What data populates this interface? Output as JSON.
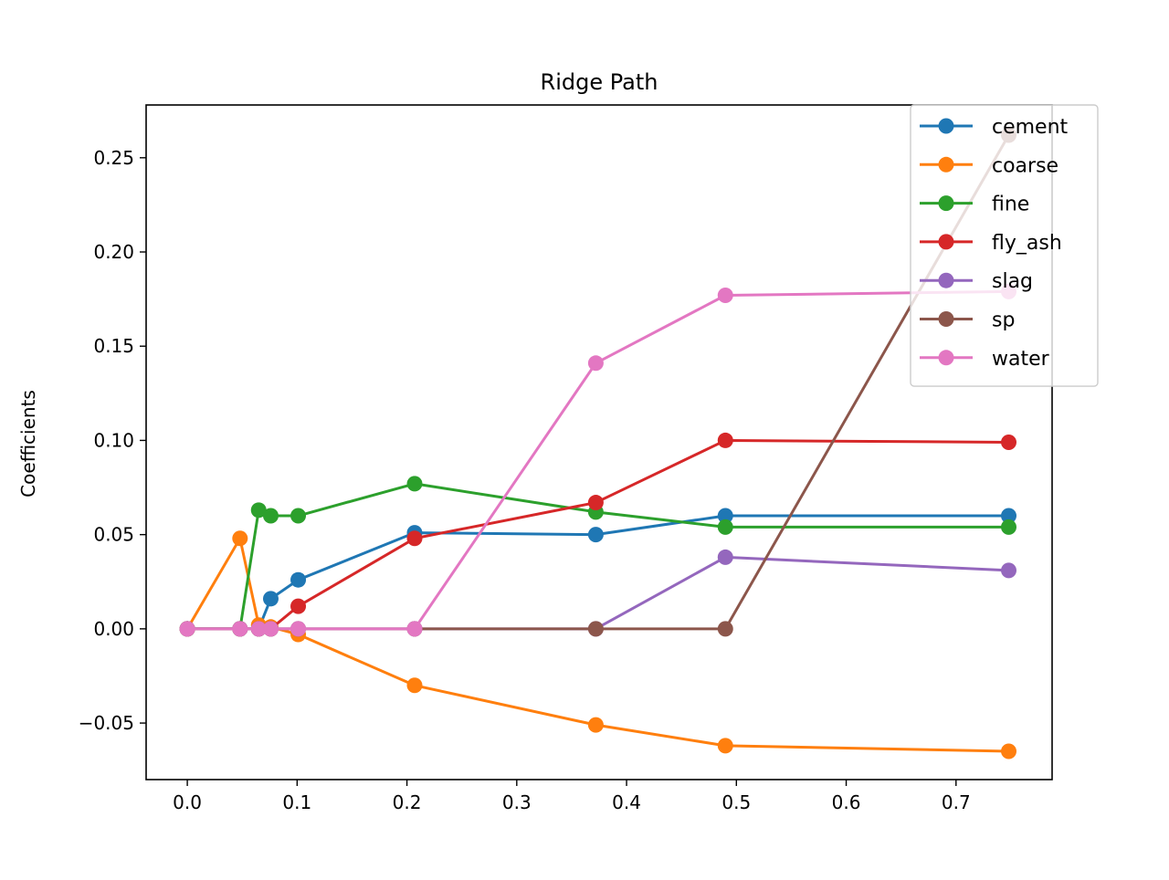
{
  "chart_data": {
    "type": "line",
    "title": "Ridge Path",
    "xlabel": "",
    "ylabel": "Coefficients",
    "xlim": [
      -0.0375,
      0.7875
    ],
    "ylim": [
      -0.08,
      0.278
    ],
    "x_ticks": [
      0.0,
      0.1,
      0.2,
      0.3,
      0.4,
      0.5,
      0.6,
      0.7
    ],
    "x_tick_labels": [
      "0.0",
      "0.1",
      "0.2",
      "0.3",
      "0.4",
      "0.5",
      "0.6",
      "0.7"
    ],
    "y_ticks": [
      -0.05,
      0.0,
      0.05,
      0.1,
      0.15,
      0.2,
      0.25
    ],
    "y_tick_labels": [
      "−0.05",
      "0.00",
      "0.05",
      "0.10",
      "0.15",
      "0.20",
      "0.25"
    ],
    "grid": false,
    "legend_position": "top-right",
    "x": [
      0.0,
      0.048,
      0.065,
      0.076,
      0.101,
      0.207,
      0.372,
      0.49,
      0.748
    ],
    "series": [
      {
        "name": "cement",
        "color": "#1f77b4",
        "values": [
          0.0,
          0.0,
          0.0,
          0.016,
          0.026,
          0.051,
          0.05,
          0.06,
          0.06
        ]
      },
      {
        "name": "coarse",
        "color": "#ff7f0e",
        "values": [
          0.0,
          0.048,
          0.002,
          0.001,
          -0.003,
          -0.03,
          -0.051,
          -0.062,
          -0.065
        ]
      },
      {
        "name": "fine",
        "color": "#2ca02c",
        "values": [
          0.0,
          0.0,
          0.063,
          0.06,
          0.06,
          0.077,
          0.062,
          0.054,
          0.054
        ]
      },
      {
        "name": "fly_ash",
        "color": "#d62728",
        "values": [
          0.0,
          0.0,
          0.0,
          0.0,
          0.012,
          0.048,
          0.067,
          0.1,
          0.099
        ]
      },
      {
        "name": "slag",
        "color": "#9467bd",
        "values": [
          0.0,
          0.0,
          0.0,
          0.0,
          0.0,
          0.0,
          0.0,
          0.038,
          0.031
        ]
      },
      {
        "name": "sp",
        "color": "#8c564b",
        "values": [
          0.0,
          0.0,
          0.0,
          0.0,
          0.0,
          0.0,
          0.0,
          0.0,
          0.262
        ]
      },
      {
        "name": "water",
        "color": "#e377c2",
        "values": [
          0.0,
          0.0,
          0.0,
          0.0,
          0.0,
          0.0,
          0.141,
          0.177,
          0.179
        ]
      }
    ]
  }
}
